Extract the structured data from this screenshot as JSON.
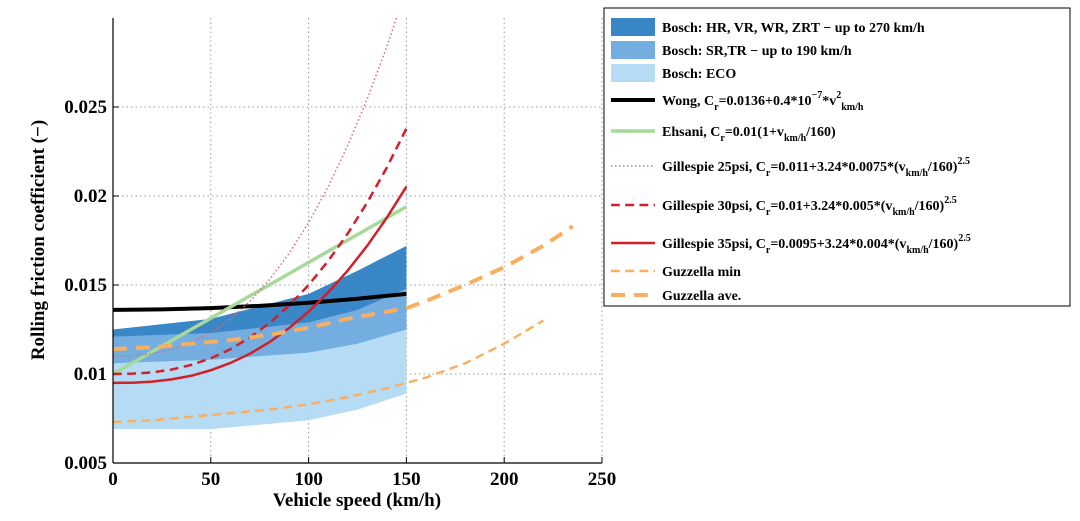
{
  "chart_data": {
    "type": "line",
    "xlabel": "Vehicle speed (km/h)",
    "ylabel": "Rolling friction coefficient (−)",
    "xlim": [
      0,
      250
    ],
    "xticks": [
      0,
      50,
      100,
      150,
      200,
      250
    ],
    "ylim": [
      0.005,
      0.03
    ],
    "yticks": [
      0.005,
      0.01,
      0.015,
      0.02,
      0.025
    ],
    "grid": true,
    "legend": "outside right",
    "series": [
      {
        "type": "area",
        "name": [
          "Bosch: HR, VR, WR, ZRT − up to 270 km/h"
        ],
        "color": "#3a87c8",
        "x": [
          0,
          50,
          100,
          125,
          150
        ],
        "upper": [
          0.0125,
          0.0131,
          0.0145,
          0.0158,
          0.0172
        ],
        "lower": [
          0.0106,
          0.0108,
          0.0112,
          0.0117,
          0.0125
        ]
      },
      {
        "type": "area",
        "name": [
          "Bosch: SR,TR − up to 190 km/h"
        ],
        "color": "#74aee0",
        "x": [
          0,
          50,
          100,
          125,
          150
        ],
        "upper": [
          0.0121,
          0.0123,
          0.0129,
          0.0136,
          0.0148
        ],
        "lower": [
          0.0106,
          0.0108,
          0.0112,
          0.0117,
          0.0125
        ]
      },
      {
        "type": "area",
        "name": [
          "Bosch: ECO"
        ],
        "color": "#b5dbf5",
        "x": [
          0,
          50,
          100,
          125,
          150
        ],
        "upper": [
          0.0106,
          0.0108,
          0.0112,
          0.0117,
          0.0125
        ],
        "lower": [
          0.0069,
          0.0069,
          0.0074,
          0.008,
          0.0089
        ]
      },
      {
        "type": "line",
        "name": [
          "Wong, C",
          {
            "sub": "r"
          },
          "=0.0136+0.4*10",
          {
            "sup": "−7"
          },
          "*v",
          {
            "sup": "2"
          },
          {
            "sub": "km/h"
          }
        ],
        "color": "#000000",
        "style": "solid",
        "linewidth": 4,
        "x": [
          0,
          25,
          50,
          75,
          100,
          125,
          150
        ],
        "values": [
          0.0136,
          0.01363,
          0.0137,
          0.01383,
          0.014,
          0.01423,
          0.0145
        ]
      },
      {
        "type": "line",
        "name": [
          "Ehsani, C",
          {
            "sub": "r"
          },
          "=0.01(1+v",
          {
            "sub": "km/h"
          },
          "/160)"
        ],
        "color": "#a6d99a",
        "style": "solid",
        "linewidth": 3.5,
        "x": [
          0,
          150
        ],
        "values": [
          0.01,
          0.0194
        ]
      },
      {
        "type": "line",
        "name": [
          "Gillespie 25psi, C",
          {
            "sub": "r"
          },
          "=0.011+3.24*0.0075*(v",
          {
            "sub": "km/h"
          },
          "/160)",
          {
            "sup": "2.5"
          }
        ],
        "color": "#e06878",
        "style": "dotted",
        "linewidth": 1.5,
        "x": [
          0,
          10,
          20,
          30,
          40,
          50,
          60,
          70,
          80,
          90,
          100,
          110,
          120,
          130,
          140,
          150
        ],
        "values": [
          0.011,
          0.01102,
          0.01113,
          0.01137,
          0.01176,
          0.01233,
          0.01309,
          0.01408,
          0.0153,
          0.01677,
          0.0185,
          0.02052,
          0.02284,
          0.02546,
          0.0284,
          0.03168
        ]
      },
      {
        "type": "line",
        "name": [
          "Gillespie 30psi, C",
          {
            "sub": "r"
          },
          "=0.01+3.24*0.005*(v",
          {
            "sub": "km/h"
          },
          "/160)",
          {
            "sup": "2.5"
          }
        ],
        "color": "#d0202a",
        "style": "dashed",
        "linewidth": 2.5,
        "x": [
          0,
          10,
          20,
          30,
          40,
          50,
          60,
          70,
          80,
          90,
          100,
          110,
          120,
          130,
          140,
          150
        ],
        "values": [
          0.01,
          0.01002,
          0.01009,
          0.01025,
          0.01051,
          0.01088,
          0.01139,
          0.01205,
          0.01286,
          0.01384,
          0.015,
          0.01635,
          0.01789,
          0.01964,
          0.0216,
          0.02379
        ]
      },
      {
        "type": "line",
        "name": [
          "Gillespie 35psi, C",
          {
            "sub": "r"
          },
          "=0.0095+3.24*0.004*(v",
          {
            "sub": "km/h"
          },
          "/160)",
          {
            "sup": "2.5"
          }
        ],
        "color": "#d0202a",
        "style": "solid",
        "linewidth": 2.5,
        "x": [
          0,
          10,
          20,
          30,
          40,
          50,
          60,
          70,
          80,
          90,
          100,
          110,
          120,
          130,
          140,
          150
        ],
        "values": [
          0.0095,
          0.00951,
          0.00957,
          0.0097,
          0.0099,
          0.01021,
          0.01062,
          0.01114,
          0.01179,
          0.01258,
          0.0135,
          0.01458,
          0.01581,
          0.01721,
          0.01878,
          0.02053
        ]
      },
      {
        "type": "line",
        "name": [
          "Guzzella min"
        ],
        "color": "#f8b060",
        "style": "dashed",
        "linewidth": 2.5,
        "x": [
          0,
          20,
          40,
          60,
          80,
          100,
          120,
          140,
          160,
          180,
          200,
          220
        ],
        "values": [
          0.0073,
          0.0074,
          0.0076,
          0.0078,
          0.008,
          0.0083,
          0.0087,
          0.0092,
          0.0098,
          0.0106,
          0.0117,
          0.013
        ]
      },
      {
        "type": "line",
        "name": [
          "Guzzella ave."
        ],
        "color": "#f8b060",
        "style": "dashed",
        "linewidth": 4,
        "x": [
          0,
          20,
          40,
          60,
          80,
          100,
          120,
          140,
          150,
          160,
          180,
          200,
          220,
          235
        ],
        "values": [
          0.0114,
          0.0115,
          0.0117,
          0.0119,
          0.0122,
          0.0126,
          0.0131,
          0.0135,
          0.0137,
          0.0141,
          0.015,
          0.016,
          0.0172,
          0.0183
        ]
      }
    ]
  }
}
